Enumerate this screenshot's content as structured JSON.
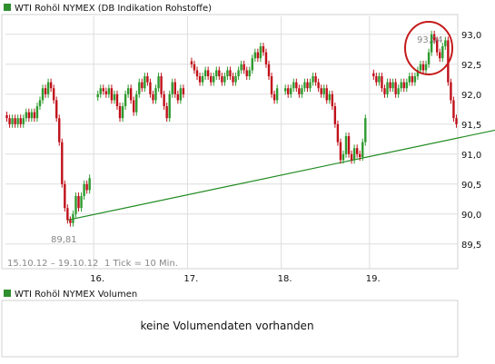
{
  "colors": {
    "up": "#2e9a2e",
    "down": "#c0101a",
    "trendline": "#1f8a1f",
    "grid": "#dddddd",
    "legend_square": "#2f8f2f",
    "highlight_circle": "#c41a1a",
    "frame": "#d0d0d0"
  },
  "volume_panel": {
    "legend": "WTI Rohöl NYMEX Volumen",
    "message": "keine Volumendaten vorhanden"
  },
  "chart_data": {
    "type": "candlestick",
    "title": "WTI Rohöl NYMEX (DB Indikation Rohstoffe)",
    "date_range": "15.10.12 – 19.10.12",
    "interval": "1 Tick = 10 Min.",
    "x_ticks": [
      "16.",
      "17.",
      "18.",
      "19."
    ],
    "y_ticks": [
      "89,5",
      "90,0",
      "90,5",
      "91,0",
      "91,5",
      "92,0",
      "92,5",
      "93,0"
    ],
    "ylim": [
      89.3,
      93.3
    ],
    "grid": true,
    "annotations": {
      "low": {
        "label": "89,81",
        "value": 89.81
      },
      "high": {
        "label": "93,04",
        "value": 93.04
      }
    },
    "trendline": [
      89.9,
      91.45
    ],
    "series": [
      {
        "segment": "15.10.",
        "close": [
          91.6,
          91.5,
          91.6,
          91.5,
          91.6,
          91.5,
          91.6,
          91.7,
          91.6,
          91.7,
          91.6,
          91.8,
          91.9,
          92.1,
          92.0,
          92.2,
          92.1,
          91.9,
          91.6,
          91.2,
          90.5,
          90.1,
          89.9,
          89.85,
          90.0,
          90.3,
          90.1,
          90.3,
          90.5,
          90.4,
          90.6
        ]
      },
      {
        "segment": "16.",
        "close": [
          92.0,
          92.1,
          92.05,
          92.0,
          92.1,
          91.9,
          92.0,
          91.8,
          91.6,
          91.8,
          92.0,
          92.1,
          91.9,
          91.7,
          92.0,
          92.2,
          92.1,
          92.3,
          92.2,
          92.0,
          91.9,
          92.1,
          92.3,
          92.0,
          91.8,
          91.6,
          92.0,
          92.2,
          92.0,
          91.9,
          92.1,
          92.0
        ]
      },
      {
        "segment": "17.",
        "close": [
          92.5,
          92.4,
          92.3,
          92.2,
          92.3,
          92.4,
          92.3,
          92.2,
          92.3,
          92.4,
          92.3,
          92.2,
          92.3,
          92.4,
          92.3,
          92.2,
          92.3,
          92.4,
          92.5,
          92.4,
          92.3,
          92.4,
          92.6,
          92.7,
          92.6,
          92.8,
          92.7,
          92.5,
          92.3,
          92.0,
          91.9,
          92.1
        ]
      },
      {
        "segment": "18.",
        "close": [
          92.1,
          92.0,
          92.1,
          92.2,
          92.1,
          92.0,
          92.1,
          92.2,
          92.1,
          92.2,
          92.3,
          92.2,
          92.1,
          92.0,
          92.1,
          91.9,
          92.0,
          91.8,
          91.5,
          91.2,
          90.9,
          91.0,
          91.3,
          91.0,
          90.9,
          91.1,
          91.0,
          90.95,
          91.2,
          91.6
        ]
      },
      {
        "segment": "19.",
        "close": [
          92.3,
          92.2,
          92.3,
          92.1,
          92.0,
          92.2,
          92.1,
          92.2,
          92.0,
          92.1,
          92.2,
          92.1,
          92.2,
          92.3,
          92.2,
          92.3,
          92.4,
          92.5,
          92.4,
          92.5,
          92.7,
          93.0,
          92.9,
          92.7,
          92.6,
          92.8,
          92.9,
          92.2,
          91.9,
          91.6,
          91.5
        ]
      }
    ]
  }
}
